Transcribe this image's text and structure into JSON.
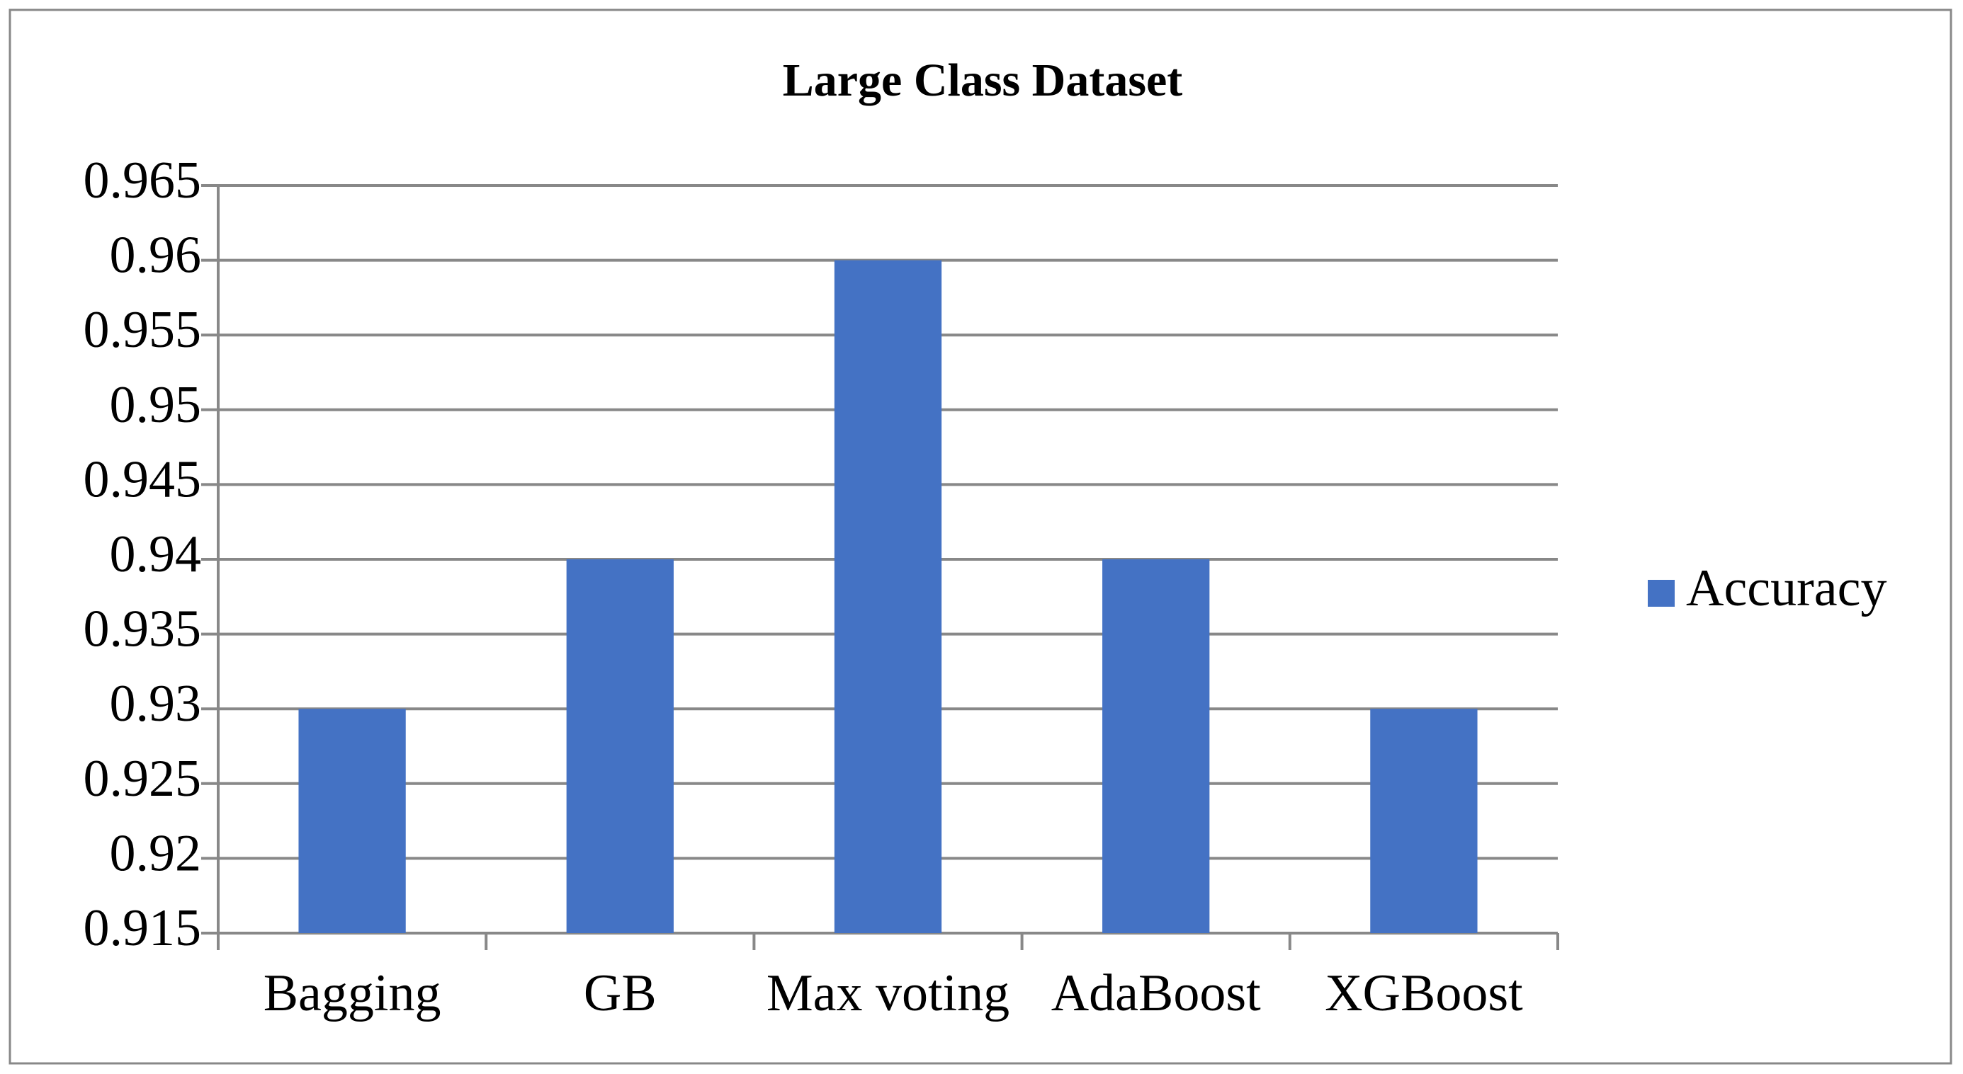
{
  "chart_data": {
    "type": "bar",
    "title": "Large Class Dataset",
    "categories": [
      "Bagging",
      "GB",
      "Max voting",
      "AdaBoost",
      "XGBoost"
    ],
    "series": [
      {
        "name": "Accuracy",
        "color": "#4472c4",
        "values": [
          0.93,
          0.94,
          0.96,
          0.94,
          0.93
        ]
      }
    ],
    "ylim": [
      0.915,
      0.965
    ],
    "yticks": [
      0.915,
      0.92,
      0.925,
      0.93,
      0.935,
      0.94,
      0.945,
      0.95,
      0.955,
      0.96,
      0.965
    ],
    "grid": true,
    "legend": "right"
  }
}
